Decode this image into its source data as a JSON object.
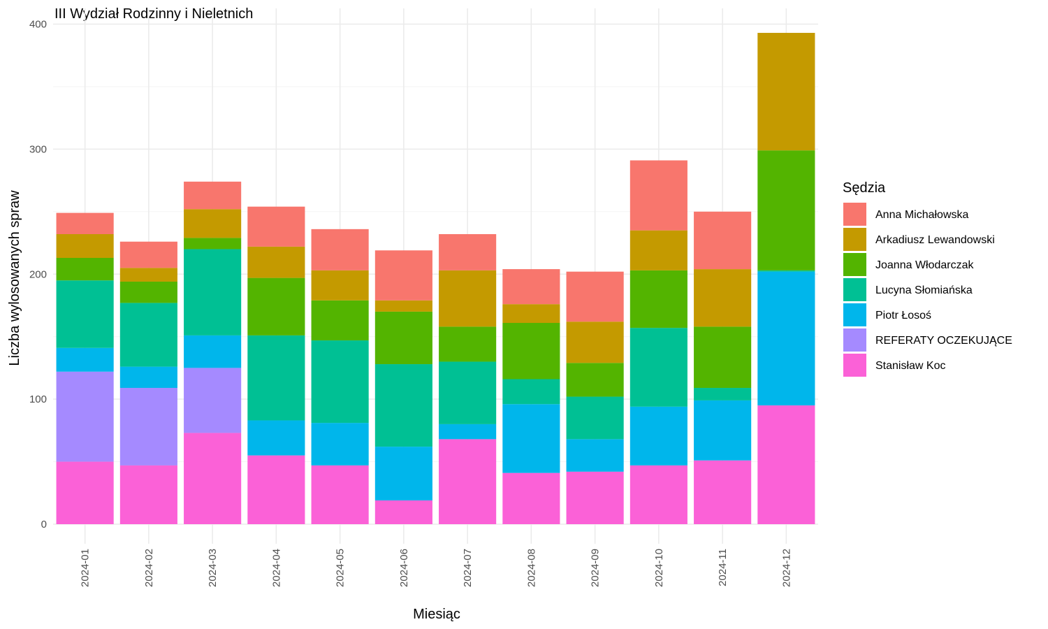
{
  "chart_data": {
    "type": "bar",
    "stacked": true,
    "title": "III Wydział Rodzinny i Nieletnich",
    "xlabel": "Miesiąc",
    "ylabel": "Liczba wylosowanych spraw",
    "ylim": [
      0,
      400
    ],
    "yticks": [
      0,
      100,
      200,
      300,
      400
    ],
    "grid": true,
    "legend_title": "Sędzia",
    "legend_position": "right",
    "categories": [
      "2024-01",
      "2024-02",
      "2024-03",
      "2024-04",
      "2024-05",
      "2024-06",
      "2024-07",
      "2024-08",
      "2024-09",
      "2024-10",
      "2024-11",
      "2024-12"
    ],
    "series": [
      {
        "name": "Anna Michałowska",
        "color": "#F8766D",
        "values": [
          17,
          21,
          22,
          32,
          33,
          40,
          29,
          28,
          40,
          56,
          46,
          0
        ]
      },
      {
        "name": "Arkadiusz Lewandowski",
        "color": "#C49A00",
        "values": [
          19,
          11,
          23,
          25,
          24,
          9,
          45,
          15,
          33,
          32,
          46,
          94
        ]
      },
      {
        "name": "Joanna Włodarczak",
        "color": "#53B400",
        "values": [
          18,
          17,
          9,
          46,
          32,
          42,
          28,
          45,
          27,
          46,
          49,
          96
        ]
      },
      {
        "name": "Lucyna Słomiańska",
        "color": "#00C094",
        "values": [
          54,
          51,
          69,
          68,
          66,
          66,
          50,
          20,
          34,
          63,
          10,
          1
        ]
      },
      {
        "name": "Piotr Łosoś",
        "color": "#00B6EB",
        "values": [
          19,
          17,
          26,
          28,
          34,
          43,
          12,
          55,
          26,
          47,
          48,
          107
        ]
      },
      {
        "name": "REFERATY OCZEKUJĄCE",
        "color": "#A58AFF",
        "values": [
          72,
          62,
          52,
          0,
          0,
          0,
          0,
          0,
          0,
          0,
          0,
          0
        ]
      },
      {
        "name": "Stanisław Koc",
        "color": "#FB61D7",
        "values": [
          50,
          47,
          73,
          55,
          47,
          19,
          68,
          41,
          42,
          47,
          51,
          95
        ]
      }
    ]
  }
}
